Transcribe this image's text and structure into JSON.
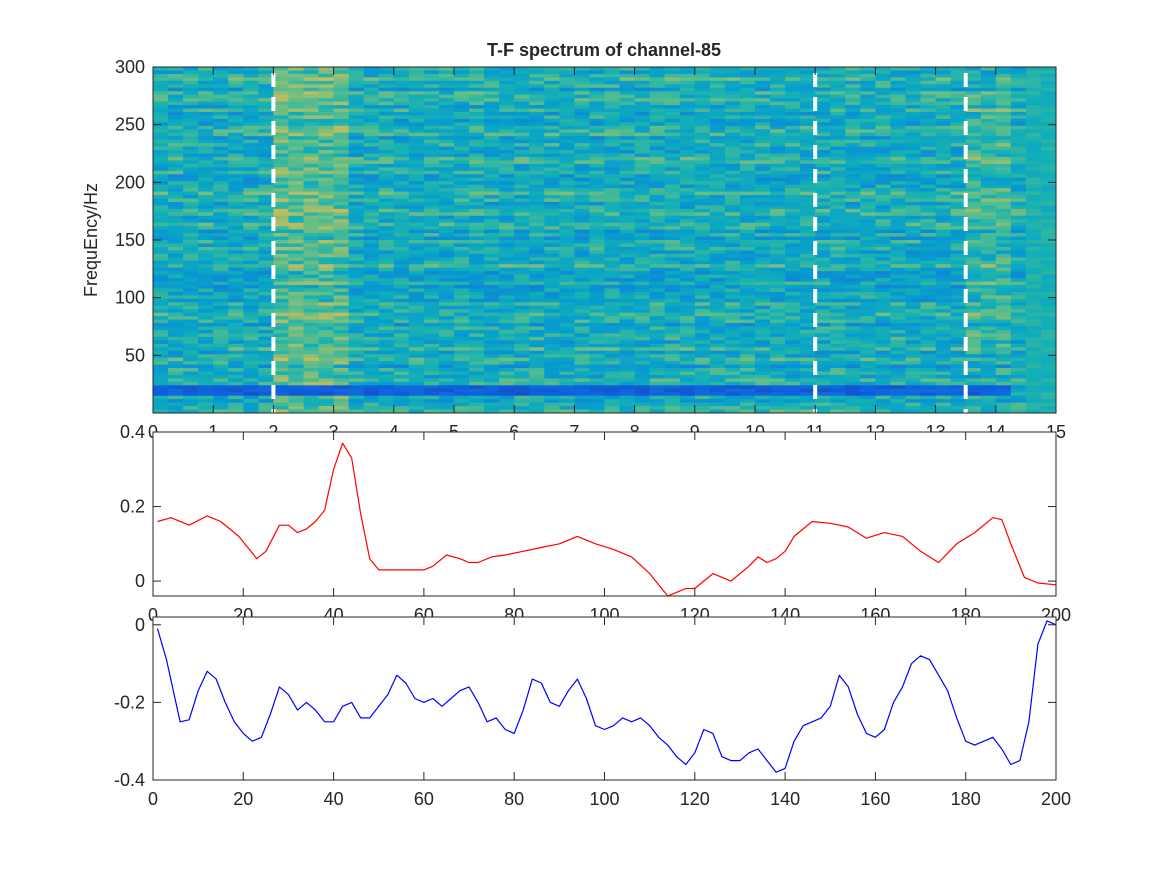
{
  "chart_data": [
    {
      "type": "heatmap",
      "title": "T-F spectrum of channel-85",
      "xlabel": "",
      "ylabel": "FrequEncy/Hz",
      "xlim": [
        0,
        15
      ],
      "ylim": [
        0,
        300
      ],
      "xticks": [
        "0",
        "1",
        "2",
        "3",
        "4",
        "5",
        "6",
        "7",
        "8",
        "9",
        "10",
        "11",
        "12",
        "13",
        "14",
        "15"
      ],
      "yticks": [
        "50",
        "100",
        "150",
        "200",
        "250",
        "300"
      ],
      "colormap": "parula",
      "grid": false,
      "markers": {
        "style": "white dashed vertical line",
        "x": [
          2,
          11,
          13.5
        ]
      },
      "visual_features": {
        "low_power_band_hz": 20,
        "high_power_patch": {
          "x_range": [
            2.1,
            3.3
          ],
          "freq_range": [
            0,
            300
          ]
        },
        "high_power_patch_2": {
          "x_range": [
            13.5,
            14.3
          ],
          "freq_range": [
            50,
            280
          ]
        }
      }
    },
    {
      "type": "line",
      "title": "",
      "xlabel": "",
      "ylabel": "",
      "xlim": [
        0,
        200
      ],
      "ylim": [
        -0.04,
        0.4
      ],
      "xticks": [
        "0",
        "20",
        "40",
        "60",
        "80",
        "100",
        "120",
        "140",
        "160",
        "180",
        "200"
      ],
      "yticks": [
        "0",
        "0.2",
        "0.4"
      ],
      "grid": false,
      "series": [
        {
          "color": "#ff0000",
          "x": [
            1,
            4,
            8,
            12,
            15,
            19,
            23,
            25,
            28,
            30,
            32,
            34,
            36,
            38,
            40,
            42,
            44,
            46,
            48,
            50,
            54,
            58,
            60,
            62,
            65,
            68,
            70,
            72,
            75,
            78,
            82,
            86,
            90,
            94,
            98,
            102,
            106,
            110,
            114,
            116,
            118,
            120,
            124,
            128,
            132,
            134,
            136,
            138,
            140,
            142,
            146,
            150,
            154,
            158,
            162,
            166,
            170,
            174,
            178,
            182,
            186,
            188,
            190,
            193,
            196,
            200
          ],
          "y": [
            0.16,
            0.17,
            0.15,
            0.175,
            0.16,
            0.12,
            0.06,
            0.08,
            0.15,
            0.15,
            0.13,
            0.14,
            0.16,
            0.19,
            0.3,
            0.37,
            0.33,
            0.18,
            0.06,
            0.03,
            0.03,
            0.03,
            0.03,
            0.04,
            0.07,
            0.06,
            0.05,
            0.05,
            0.065,
            0.07,
            0.08,
            0.09,
            0.1,
            0.12,
            0.1,
            0.085,
            0.065,
            0.02,
            -0.04,
            -0.03,
            -0.02,
            -0.02,
            0.02,
            0.0,
            0.04,
            0.065,
            0.05,
            0.06,
            0.08,
            0.12,
            0.16,
            0.155,
            0.145,
            0.115,
            0.13,
            0.12,
            0.08,
            0.05,
            0.1,
            0.13,
            0.17,
            0.165,
            0.1,
            0.01,
            -0.005,
            -0.01
          ]
        }
      ]
    },
    {
      "type": "line",
      "title": "",
      "xlabel": "",
      "ylabel": "",
      "xlim": [
        0,
        200
      ],
      "ylim": [
        -0.4,
        0.02
      ],
      "xticks": [
        "0",
        "20",
        "40",
        "60",
        "80",
        "100",
        "120",
        "140",
        "160",
        "180",
        "200"
      ],
      "yticks": [
        "-0.4",
        "-0.2",
        "0"
      ],
      "grid": false,
      "series": [
        {
          "color": "#0000ff",
          "x": [
            1,
            3,
            6,
            8,
            10,
            12,
            14,
            16,
            18,
            20,
            22,
            24,
            26,
            28,
            30,
            32,
            34,
            36,
            38,
            40,
            42,
            44,
            46,
            48,
            50,
            52,
            54,
            56,
            58,
            60,
            62,
            64,
            66,
            68,
            70,
            72,
            74,
            76,
            78,
            80,
            82,
            84,
            86,
            88,
            90,
            92,
            94,
            96,
            98,
            100,
            102,
            104,
            106,
            108,
            110,
            112,
            114,
            116,
            118,
            120,
            122,
            124,
            126,
            128,
            130,
            132,
            134,
            136,
            138,
            140,
            142,
            144,
            146,
            148,
            150,
            152,
            154,
            156,
            158,
            160,
            162,
            164,
            166,
            168,
            170,
            172,
            174,
            176,
            178,
            180,
            182,
            184,
            186,
            188,
            190,
            192,
            194,
            196,
            198,
            200
          ],
          "y": [
            -0.01,
            -0.09,
            -0.25,
            -0.245,
            -0.17,
            -0.12,
            -0.14,
            -0.2,
            -0.25,
            -0.28,
            -0.3,
            -0.29,
            -0.23,
            -0.16,
            -0.18,
            -0.22,
            -0.2,
            -0.22,
            -0.25,
            -0.25,
            -0.21,
            -0.2,
            -0.24,
            -0.24,
            -0.21,
            -0.18,
            -0.13,
            -0.15,
            -0.19,
            -0.2,
            -0.19,
            -0.21,
            -0.19,
            -0.17,
            -0.16,
            -0.2,
            -0.25,
            -0.24,
            -0.27,
            -0.28,
            -0.22,
            -0.14,
            -0.15,
            -0.2,
            -0.21,
            -0.17,
            -0.14,
            -0.19,
            -0.26,
            -0.27,
            -0.26,
            -0.24,
            -0.25,
            -0.24,
            -0.26,
            -0.29,
            -0.31,
            -0.34,
            -0.36,
            -0.33,
            -0.27,
            -0.28,
            -0.34,
            -0.35,
            -0.35,
            -0.33,
            -0.32,
            -0.35,
            -0.38,
            -0.37,
            -0.3,
            -0.26,
            -0.25,
            -0.24,
            -0.21,
            -0.13,
            -0.16,
            -0.23,
            -0.28,
            -0.29,
            -0.27,
            -0.2,
            -0.16,
            -0.1,
            -0.08,
            -0.09,
            -0.13,
            -0.17,
            -0.24,
            -0.3,
            -0.31,
            -0.3,
            -0.29,
            -0.32,
            -0.36,
            -0.35,
            -0.25,
            -0.05,
            0.01,
            0.0
          ]
        }
      ]
    }
  ]
}
